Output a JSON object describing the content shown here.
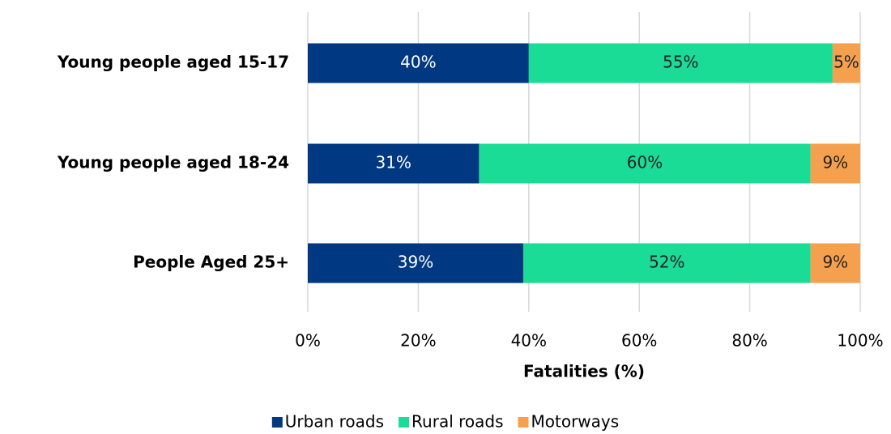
{
  "chart_data": {
    "type": "stacked_barh",
    "categories": [
      "Young people aged 15-17",
      "Young people aged 18-24",
      "People Aged 25+"
    ],
    "series": [
      {
        "name": "Urban roads",
        "color": "#003882",
        "values": [
          40,
          31,
          39
        ],
        "value_labels": [
          "40%",
          "31%",
          "39%"
        ]
      },
      {
        "name": "Rural roads",
        "color": "#1adc96",
        "values": [
          55,
          60,
          52
        ],
        "value_labels": [
          "55%",
          "60%",
          "52%"
        ]
      },
      {
        "name": "Motorways",
        "color": "#f5a04e",
        "values": [
          5,
          9,
          9
        ],
        "value_labels": [
          "5%",
          "9%",
          "9%"
        ]
      }
    ],
    "xlim": [
      0,
      100
    ],
    "xticks": [
      {
        "value": 0,
        "label": "0%"
      },
      {
        "value": 20,
        "label": "20%"
      },
      {
        "value": 40,
        "label": "40%"
      },
      {
        "value": 60,
        "label": "60%"
      },
      {
        "value": 80,
        "label": "80%"
      },
      {
        "value": 100,
        "label": "100%"
      }
    ],
    "xlabel": "Fatalities (%)",
    "grid": true,
    "legend": "bottom"
  }
}
